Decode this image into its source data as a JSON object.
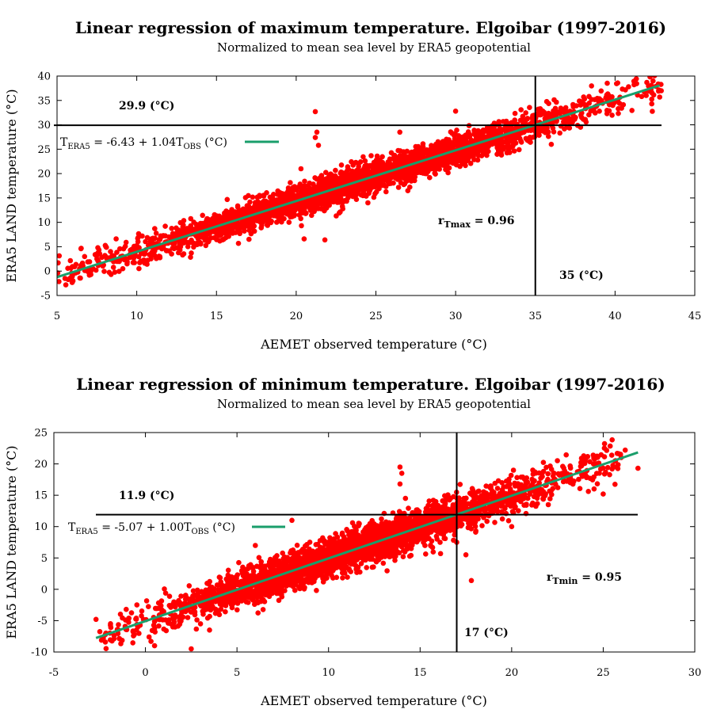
{
  "chart_data": [
    {
      "type": "scatter",
      "title": "Linear regression of maximum temperature. Elgoibar (1997-2016)",
      "subtitle": "Normalized to mean sea level by ERA5 geopotential",
      "xlabel": "AEMET observed temperature (°C)",
      "ylabel": "ERA5 LAND temperature (°C)",
      "xlim": [
        5,
        45
      ],
      "ylim": [
        -5,
        40
      ],
      "xticks": [
        "5",
        "10",
        "15",
        "20",
        "25",
        "30",
        "35",
        "40",
        "45"
      ],
      "yticks": [
        "-5",
        "0",
        "5",
        "10",
        "15",
        "20",
        "25",
        "30",
        "35",
        "40"
      ],
      "xtick_values": [
        5,
        10,
        15,
        20,
        25,
        30,
        35,
        40,
        45
      ],
      "ytick_values": [
        -5,
        0,
        5,
        10,
        15,
        20,
        25,
        30,
        35,
        40
      ],
      "grid": false,
      "legend_position": "top-left",
      "regression": {
        "intercept": -6.43,
        "slope": 1.04,
        "x_range": [
          5.0,
          42.8
        ]
      },
      "legend": {
        "t_sub": "ERA5",
        "eq_mid": " = -6.43 + 1.04T",
        "obs_sub": "OBS",
        "unit": " (°C)"
      },
      "scatter_cloud": {
        "x_range": [
          5.0,
          42.9
        ],
        "residual_spread": 1.6
      },
      "scatter_points": [
        [
          5.0,
          -0.7
        ],
        [
          5.5,
          -1.5
        ],
        [
          6.0,
          -2.0
        ],
        [
          6.1,
          0.9
        ],
        [
          6.3,
          -0.2
        ],
        [
          6.5,
          4.6
        ],
        [
          7.0,
          0.5
        ],
        [
          7.5,
          2.5
        ],
        [
          8.0,
          3.2
        ],
        [
          9.0,
          3.0
        ],
        [
          10.0,
          4.3
        ],
        [
          11.0,
          5.8
        ],
        [
          21.2,
          32.7
        ],
        [
          21.3,
          28.5
        ],
        [
          21.2,
          27.4
        ],
        [
          21.4,
          25.8
        ],
        [
          20.5,
          6.6
        ],
        [
          21.8,
          6.4
        ],
        [
          20.3,
          21.0
        ],
        [
          30.0,
          32.8
        ],
        [
          35.2,
          32.5
        ],
        [
          42.8,
          35.7
        ],
        [
          42.9,
          37.0
        ],
        [
          42.3,
          34.3
        ],
        [
          26.5,
          28.5
        ],
        [
          28.0,
          22.0
        ],
        [
          33.0,
          25.0
        ],
        [
          36.0,
          26.0
        ],
        [
          24.5,
          14.0
        ],
        [
          27.0,
          16.5
        ]
      ],
      "hline": {
        "y": 29.9,
        "label": "29.9 (°C)"
      },
      "vline": {
        "x": 35,
        "label": "35 (°C)"
      },
      "r_label": {
        "r": "r",
        "sub": "Tmax",
        "value": " = 0.96"
      },
      "colors": {
        "points": "#ff0000",
        "fit": "#1a9e6b",
        "lines": "#000000"
      }
    },
    {
      "type": "scatter",
      "title": "Linear regression of minimum temperature. Elgoibar (1997-2016)",
      "subtitle": "Normalized to mean sea level by ERA5 geopotential",
      "xlabel": "AEMET observed temperature (°C)",
      "ylabel": "ERA5 LAND temperature (°C)",
      "xlim": [
        -5,
        30
      ],
      "ylim": [
        -10,
        25
      ],
      "xticks": [
        "-5",
        "0",
        "5",
        "10",
        "15",
        "20",
        "25",
        "30"
      ],
      "yticks": [
        "-10",
        "-5",
        "0",
        "5",
        "10",
        "15",
        "20",
        "25"
      ],
      "xtick_values": [
        -5,
        0,
        5,
        10,
        15,
        20,
        25,
        30
      ],
      "ytick_values": [
        -10,
        -5,
        0,
        5,
        10,
        15,
        20,
        25
      ],
      "grid": false,
      "legend_position": "top-left",
      "regression": {
        "intercept": -5.07,
        "slope": 1.0,
        "x_range": [
          -2.7,
          26.9
        ]
      },
      "legend": {
        "t_sub": "ERA5",
        "eq_mid": " = -5.07 + 1.00T",
        "obs_sub": "OBS",
        "unit": " (°C)"
      },
      "scatter_cloud": {
        "x_range": [
          -2.5,
          26.0
        ],
        "residual_spread": 1.5
      },
      "scatter_points": [
        [
          -2.7,
          -4.8
        ],
        [
          -2.3,
          -7.8
        ],
        [
          -0.5,
          -4.6
        ],
        [
          0.2,
          -7.6
        ],
        [
          0.5,
          -9.0
        ],
        [
          1.5,
          -6.0
        ],
        [
          2.5,
          -9.5
        ],
        [
          3.5,
          -6.5
        ],
        [
          13.9,
          19.5
        ],
        [
          14.0,
          18.5
        ],
        [
          13.9,
          16.8
        ],
        [
          14.2,
          14.5
        ],
        [
          17.8,
          1.4
        ],
        [
          17.5,
          5.5
        ],
        [
          26.2,
          22.2
        ],
        [
          26.9,
          19.3
        ],
        [
          24.5,
          16.0
        ],
        [
          25.0,
          15.2
        ],
        [
          7.0,
          4.5
        ],
        [
          8.0,
          11.0
        ],
        [
          6.0,
          7.0
        ],
        [
          17.0,
          7.5
        ],
        [
          20.0,
          10.0
        ],
        [
          22.0,
          13.5
        ]
      ],
      "hline": {
        "y": 11.9,
        "label": "11.9 (°C)"
      },
      "vline": {
        "x": 17,
        "label": "17 (°C)"
      },
      "r_label": {
        "r": "r",
        "sub": "Tmin",
        "value": " = 0.95"
      },
      "colors": {
        "points": "#ff0000",
        "fit": "#1a9e6b",
        "lines": "#000000"
      }
    }
  ]
}
